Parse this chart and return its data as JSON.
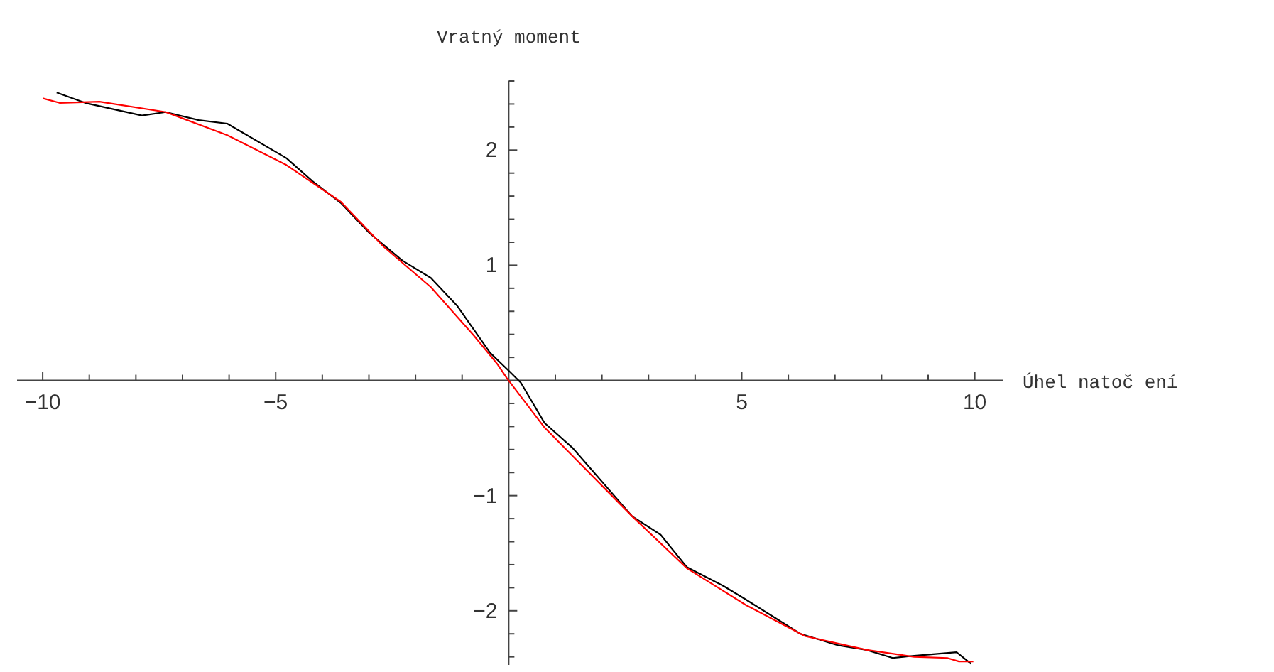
{
  "chart_data": {
    "type": "line",
    "xlabel": "Úhel natoč ení",
    "ylabel": "Vratný moment",
    "xlim": [
      -10.55,
      10.6
    ],
    "ylim": [
      -2.47,
      2.6
    ],
    "xticks": [
      -10,
      {
        "value": -9,
        "label": null
      },
      {
        "value": -8,
        "label": null
      },
      {
        "value": -7,
        "label": null
      },
      {
        "value": -6,
        "label": null
      },
      -5,
      {
        "value": -4,
        "label": null
      },
      {
        "value": -3,
        "label": null
      },
      {
        "value": -2,
        "label": null
      },
      {
        "value": -1,
        "label": null
      },
      {
        "value": 1,
        "label": null
      },
      {
        "value": 2,
        "label": null
      },
      {
        "value": 3,
        "label": null
      },
      {
        "value": 4,
        "label": null
      },
      5,
      {
        "value": 6,
        "label": null
      },
      {
        "value": 7,
        "label": null
      },
      {
        "value": 8,
        "label": null
      },
      {
        "value": 9,
        "label": null
      },
      10
    ],
    "yticks": [
      {
        "value": -2.4,
        "label": null
      },
      {
        "value": -2.2,
        "label": null
      },
      -2,
      {
        "value": -1.8,
        "label": null
      },
      {
        "value": -1.6,
        "label": null
      },
      {
        "value": -1.4,
        "label": null
      },
      {
        "value": -1.2,
        "label": null
      },
      -1,
      {
        "value": -0.8,
        "label": null
      },
      {
        "value": -0.6,
        "label": null
      },
      {
        "value": -0.4,
        "label": null
      },
      {
        "value": -0.2,
        "label": null
      },
      {
        "value": 0.2,
        "label": null
      },
      {
        "value": 0.4,
        "label": null
      },
      {
        "value": 0.6,
        "label": null
      },
      {
        "value": 0.8,
        "label": null
      },
      1,
      {
        "value": 1.2,
        "label": null
      },
      {
        "value": 1.4,
        "label": null
      },
      {
        "value": 1.6,
        "label": null
      },
      {
        "value": 1.8,
        "label": null
      },
      2,
      {
        "value": 2.2,
        "label": null
      },
      {
        "value": 2.4,
        "label": null
      },
      {
        "value": 2.6,
        "label": null
      }
    ],
    "series": [
      {
        "color": "#000000",
        "x": [
          -9.7,
          -9.09,
          -7.87,
          -7.36,
          -6.65,
          -6.04,
          -4.77,
          -4.21,
          -3.6,
          -2.99,
          -2.28,
          -1.67,
          -1.11,
          -0.4,
          0.01,
          0.26,
          0.77,
          1.38,
          2.65,
          3.26,
          3.82,
          4.63,
          5.04,
          6.26,
          7.07,
          7.68,
          8.24,
          8.7,
          9.61,
          9.92
        ],
        "values": [
          2.5,
          2.41,
          2.3,
          2.33,
          2.26,
          2.23,
          1.93,
          1.73,
          1.54,
          1.28,
          1.04,
          0.89,
          0.65,
          0.24,
          0.08,
          -0.02,
          -0.37,
          -0.59,
          -1.18,
          -1.34,
          -1.62,
          -1.79,
          -1.89,
          -2.2,
          -2.3,
          -2.34,
          -2.41,
          -2.39,
          -2.36,
          -2.46
        ]
      },
      {
        "color": "#ff0000",
        "x": [
          -10,
          -9.64,
          -8.78,
          -7.36,
          -6.04,
          -4.77,
          -3.6,
          -2.68,
          -1.67,
          -0.75,
          -0.24,
          -0.04,
          0.77,
          2.65,
          3.82,
          5.09,
          6.36,
          7.68,
          8.7,
          9.41,
          9.66,
          9.97
        ],
        "values": [
          2.45,
          2.41,
          2.42,
          2.33,
          2.13,
          1.87,
          1.55,
          1.16,
          0.81,
          0.39,
          0.14,
          0.02,
          -0.41,
          -1.18,
          -1.63,
          -1.95,
          -2.22,
          -2.34,
          -2.4,
          -2.41,
          -2.44,
          -2.44
        ]
      }
    ],
    "grid": false,
    "marker": "none",
    "line_style": "solid"
  }
}
